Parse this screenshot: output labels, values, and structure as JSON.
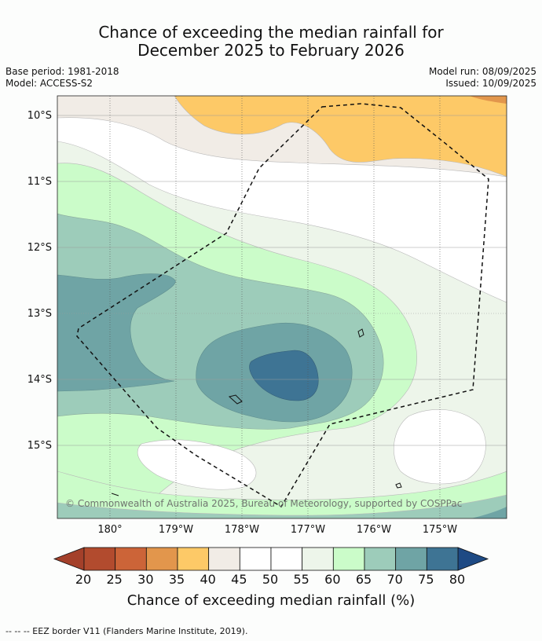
{
  "title": {
    "line1": "Chance of exceeding the median rainfall for",
    "line2": "December 2025 to February 2026"
  },
  "meta": {
    "base_period": "Base period: 1981-2018",
    "model": "Model: ACCESS-S2",
    "model_run": "Model run: 08/09/2025",
    "issued": "Issued: 10/09/2025"
  },
  "map": {
    "lat_labels": [
      "10°S",
      "11°S",
      "12°S",
      "13°S",
      "14°S",
      "15°S"
    ],
    "lon_labels": [
      "180°",
      "179°W",
      "178°W",
      "177°W",
      "176°W",
      "175°W"
    ],
    "copyright": "© Commonwealth of Australia 2025, Bureau of Meteorology, supported by COSPPac",
    "eez_line_style": "dashed"
  },
  "colorbar": {
    "ticks": [
      "20",
      "25",
      "30",
      "35",
      "40",
      "45",
      "50",
      "55",
      "60",
      "65",
      "70",
      "75",
      "80"
    ],
    "colors": [
      "#b24b2e",
      "#cc6438",
      "#e2964c",
      "#fdc967",
      "#f1ece6",
      "#ffffff",
      "#ffffff",
      "#edf5ea",
      "#cbfcc9",
      "#9dccba",
      "#6fa4a5",
      "#3e7494"
    ],
    "low_extend_color": "#a4402a",
    "high_extend_color": "#1e4a84",
    "title": "Chance of exceeding median rainfall (%)"
  },
  "footnote": "--  --  -- EEZ border V11 (Flanders Marine Institute, 2019)."
}
